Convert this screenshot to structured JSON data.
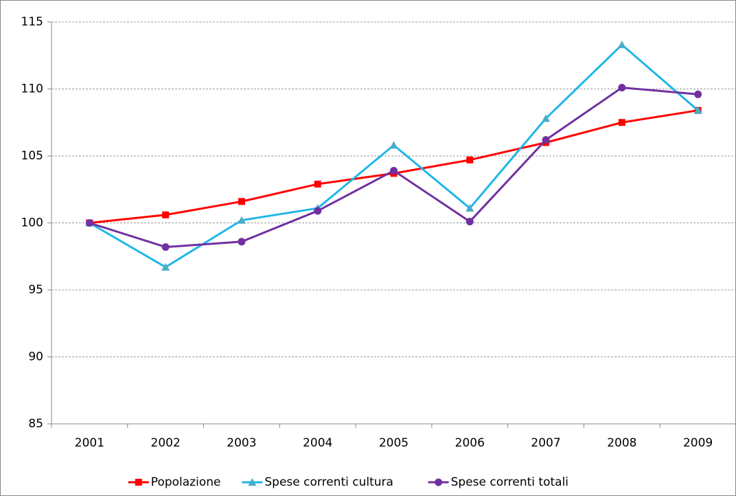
{
  "chart_data": {
    "type": "line",
    "categories": [
      "2001",
      "2002",
      "2003",
      "2004",
      "2005",
      "2006",
      "2007",
      "2008",
      "2009"
    ],
    "series": [
      {
        "name": "Popolazione",
        "color": "#ff0000",
        "marker": "square",
        "values": [
          100,
          100.6,
          101.6,
          102.9,
          103.7,
          104.7,
          106.0,
          107.5,
          108.4
        ]
      },
      {
        "name": "Spese correnti cultura",
        "color": "#1fb6e8",
        "marker": "triangle",
        "values": [
          100,
          96.7,
          100.2,
          101.1,
          105.8,
          101.1,
          107.8,
          113.3,
          108.4
        ]
      },
      {
        "name": "Spese correnti totali",
        "color": "#7030a0",
        "marker": "circle",
        "values": [
          100,
          98.2,
          98.6,
          100.9,
          103.9,
          100.1,
          106.2,
          110.1,
          109.6
        ]
      }
    ],
    "ylim": [
      85,
      115
    ],
    "yticks": [
      85,
      90,
      95,
      100,
      105,
      110,
      115
    ],
    "grid": true,
    "legend": "bottom"
  }
}
